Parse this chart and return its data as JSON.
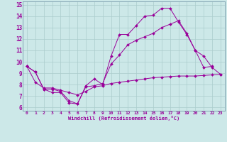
{
  "xlabel": "Windchill (Refroidissement éolien,°C)",
  "bg_color": "#cce8e8",
  "line_color": "#990099",
  "grid_color": "#aacccc",
  "xlim": [
    -0.5,
    23.5
  ],
  "ylim": [
    5.7,
    15.3
  ],
  "xticks": [
    0,
    1,
    2,
    3,
    4,
    5,
    6,
    7,
    8,
    9,
    10,
    11,
    12,
    13,
    14,
    15,
    16,
    17,
    18,
    19,
    20,
    21,
    22,
    23
  ],
  "yticks": [
    6,
    7,
    8,
    9,
    10,
    11,
    12,
    13,
    14,
    15
  ],
  "line1_x": [
    0,
    1,
    2,
    3,
    4,
    5,
    6,
    7,
    8,
    9,
    10,
    11,
    12,
    13,
    14,
    15,
    16,
    17,
    18,
    19,
    20,
    21,
    22
  ],
  "line1_y": [
    9.6,
    9.1,
    7.6,
    7.3,
    7.3,
    6.4,
    6.3,
    7.9,
    8.5,
    8.0,
    10.5,
    12.4,
    12.4,
    13.2,
    14.0,
    14.1,
    14.7,
    14.7,
    13.5,
    12.4,
    11.0,
    9.5,
    9.6
  ],
  "line2_x": [
    0,
    1,
    2,
    3,
    4,
    5,
    6,
    7,
    8,
    9,
    10,
    11,
    12,
    13,
    14,
    15,
    16,
    17,
    18,
    19,
    20,
    21,
    22,
    23
  ],
  "line2_y": [
    9.6,
    9.1,
    7.6,
    7.6,
    7.4,
    6.6,
    6.3,
    7.8,
    7.9,
    8.1,
    9.8,
    10.6,
    11.5,
    11.9,
    12.2,
    12.5,
    13.0,
    13.3,
    13.6,
    12.5,
    11.0,
    10.5,
    9.5,
    8.9
  ],
  "line3_x": [
    0,
    1,
    2,
    3,
    4,
    5,
    6,
    7,
    8,
    9,
    10,
    11,
    12,
    13,
    14,
    15,
    16,
    17,
    18,
    19,
    20,
    21,
    22,
    23
  ],
  "line3_y": [
    9.6,
    8.2,
    7.7,
    7.7,
    7.5,
    7.3,
    7.1,
    7.4,
    7.8,
    7.9,
    8.1,
    8.2,
    8.3,
    8.4,
    8.5,
    8.6,
    8.65,
    8.7,
    8.75,
    8.75,
    8.75,
    8.8,
    8.85,
    8.9
  ]
}
